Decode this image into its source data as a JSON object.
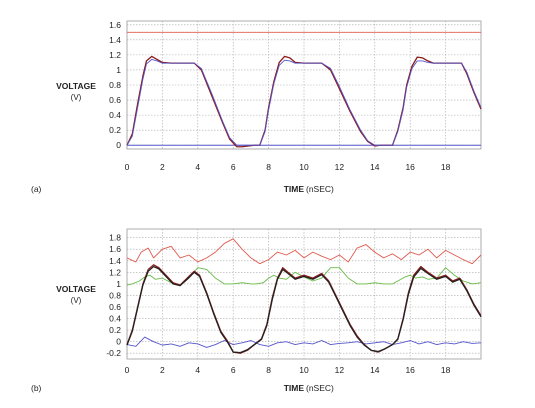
{
  "chart_data": [
    {
      "panel_label": "(a)",
      "type": "line",
      "ylabel": "VOLTAGE",
      "yunit": "(V)",
      "xlabel": "TIME",
      "xunit": "(nSEC)",
      "xlim": [
        0,
        20
      ],
      "ylim": [
        -0.05,
        1.65
      ],
      "xticks": [
        "0",
        "2",
        "4",
        "6",
        "8",
        "10",
        "12",
        "14",
        "16",
        "18"
      ],
      "yticks": [
        "0",
        "0.2",
        "0.4",
        "0.6",
        "0.8",
        "1",
        "1.2",
        "1.4",
        "1.6"
      ],
      "grid": true,
      "colors": {
        "red": "#e05a4e",
        "blue": "#5555cc",
        "black": "#222222",
        "dkred": "#8a1a1a"
      },
      "series": [
        {
          "color": "#e05a4e",
          "x": [
            0,
            20
          ],
          "y": [
            1.5,
            1.5
          ]
        },
        {
          "color": "#5555cc",
          "x": [
            0,
            20
          ],
          "y": [
            0,
            0
          ]
        },
        {
          "color": "#8a1a1a",
          "x": [
            0,
            0.3,
            0.6,
            0.9,
            1.1,
            1.4,
            1.7,
            2.0,
            2.5,
            3.0,
            3.8,
            4.2,
            4.8,
            5.4,
            5.8,
            6.2,
            6.5,
            7.2,
            7.5,
            7.8,
            8.0,
            8.3,
            8.6,
            8.9,
            9.2,
            9.5,
            10.0,
            11.0,
            11.5,
            12.0,
            12.6,
            13.2,
            13.6,
            14.0,
            14.3,
            15.0,
            15.3,
            15.6,
            15.8,
            16.1,
            16.4,
            16.7,
            17.0,
            17.3,
            17.5,
            18.0,
            18.9,
            19.2,
            19.6,
            20.0
          ],
          "y": [
            0,
            0.15,
            0.55,
            0.92,
            1.12,
            1.18,
            1.14,
            1.1,
            1.09,
            1.09,
            1.09,
            1.0,
            0.65,
            0.3,
            0.08,
            -0.02,
            -0.02,
            0,
            0,
            0.2,
            0.5,
            0.85,
            1.1,
            1.18,
            1.16,
            1.1,
            1.09,
            1.09,
            1.0,
            0.75,
            0.45,
            0.18,
            0.05,
            -0.01,
            0,
            0,
            0.2,
            0.5,
            0.8,
            1.05,
            1.17,
            1.16,
            1.12,
            1.09,
            1.09,
            1.09,
            1.09,
            0.95,
            0.7,
            0.48
          ]
        },
        {
          "color": "#5555cc",
          "x": [
            0,
            0.3,
            0.6,
            0.9,
            1.1,
            1.4,
            1.7,
            2.0,
            2.5,
            3.0,
            3.8,
            4.2,
            4.8,
            5.4,
            5.8,
            6.2,
            6.5,
            7.2,
            7.5,
            7.8,
            8.0,
            8.3,
            8.6,
            8.9,
            9.2,
            9.5,
            10.0,
            11.0,
            11.5,
            12.0,
            12.6,
            13.2,
            13.6,
            14.0,
            14.3,
            15.0,
            15.3,
            15.6,
            15.8,
            16.1,
            16.4,
            16.7,
            17.0,
            17.3,
            17.5,
            18.0,
            18.9,
            19.2,
            19.6,
            20.0
          ],
          "y": [
            0,
            0.12,
            0.5,
            0.88,
            1.08,
            1.14,
            1.12,
            1.09,
            1.09,
            1.09,
            1.09,
            1.02,
            0.68,
            0.32,
            0.1,
            0,
            0,
            0,
            0,
            0.18,
            0.47,
            0.82,
            1.06,
            1.13,
            1.12,
            1.09,
            1.09,
            1.09,
            1.02,
            0.78,
            0.47,
            0.2,
            0.06,
            0,
            0,
            0,
            0.18,
            0.47,
            0.77,
            1.02,
            1.12,
            1.12,
            1.1,
            1.09,
            1.09,
            1.09,
            1.09,
            0.97,
            0.72,
            0.5
          ]
        }
      ]
    },
    {
      "panel_label": "(b)",
      "type": "line",
      "ylabel": "VOLTAGE",
      "yunit": "(V)",
      "xlabel": "TIME",
      "xunit": "(nSEC)",
      "xlim": [
        0,
        20
      ],
      "ylim": [
        -0.3,
        1.95
      ],
      "xticks": [
        "0",
        "2",
        "4",
        "6",
        "8",
        "10",
        "12",
        "14",
        "16",
        "18"
      ],
      "yticks": [
        "-0.2",
        "0",
        "0.2",
        "0.4",
        "0.6",
        "0.8",
        "1",
        "1.2",
        "1.4",
        "1.6",
        "1.8"
      ],
      "grid": true,
      "colors": {
        "red": "#e05a4e",
        "green": "#66bb44",
        "blue": "#5555cc",
        "black": "#222222",
        "dkred": "#8a1a1a"
      },
      "series": [
        {
          "color": "#e05a4e",
          "x": [
            0,
            0.5,
            0.8,
            1.2,
            1.5,
            2.0,
            2.5,
            3.0,
            3.5,
            4.0,
            4.5,
            5.0,
            5.5,
            6.0,
            6.5,
            7.0,
            7.5,
            8.0,
            8.5,
            9.0,
            9.5,
            10.0,
            10.5,
            11.0,
            11.5,
            12.0,
            12.5,
            13.0,
            13.5,
            14.0,
            14.5,
            15.0,
            15.5,
            16.0,
            16.5,
            17.0,
            17.5,
            18.0,
            18.5,
            19.0,
            19.5,
            20.0
          ],
          "y": [
            1.45,
            1.38,
            1.55,
            1.62,
            1.45,
            1.6,
            1.65,
            1.45,
            1.5,
            1.38,
            1.45,
            1.55,
            1.7,
            1.78,
            1.6,
            1.45,
            1.35,
            1.42,
            1.55,
            1.5,
            1.58,
            1.45,
            1.55,
            1.48,
            1.42,
            1.5,
            1.38,
            1.62,
            1.68,
            1.55,
            1.45,
            1.52,
            1.42,
            1.55,
            1.5,
            1.6,
            1.45,
            1.58,
            1.5,
            1.42,
            1.35,
            1.5
          ]
        },
        {
          "color": "#66bb44",
          "x": [
            0,
            0.3,
            0.7,
            1.0,
            1.3,
            1.6,
            2.0,
            2.5,
            3.0,
            3.5,
            4.0,
            4.5,
            5.0,
            5.5,
            6.0,
            6.5,
            7.0,
            7.3,
            7.7,
            8.0,
            8.3,
            8.6,
            9.0,
            9.5,
            10.0,
            10.5,
            11.0,
            11.5,
            12.0,
            12.5,
            13.0,
            13.5,
            14.0,
            14.5,
            15.0,
            15.3,
            15.7,
            16.0,
            16.3,
            16.7,
            17.0,
            17.5,
            18.0,
            18.5,
            19.0,
            19.5,
            20.0
          ],
          "y": [
            0.98,
            1.0,
            1.05,
            1.12,
            1.15,
            1.08,
            1.1,
            1.02,
            0.98,
            1.1,
            1.28,
            1.25,
            1.1,
            1.0,
            1.0,
            1.02,
            1.0,
            1.0,
            1.02,
            1.1,
            1.15,
            1.1,
            1.08,
            1.2,
            1.12,
            1.05,
            1.1,
            1.28,
            1.28,
            1.1,
            1.0,
            1.0,
            1.02,
            1.0,
            1.0,
            1.05,
            1.12,
            1.15,
            1.1,
            1.12,
            1.08,
            1.1,
            1.28,
            1.15,
            1.05,
            1.0,
            1.02
          ]
        },
        {
          "color": "#5555cc",
          "x": [
            0,
            0.5,
            1.0,
            1.5,
            2.0,
            2.5,
            3.0,
            3.5,
            4.0,
            4.5,
            5.0,
            5.5,
            6.0,
            6.5,
            7.0,
            7.5,
            8.0,
            8.5,
            9.0,
            9.5,
            10.0,
            10.5,
            11.0,
            11.5,
            12.0,
            12.5,
            13.0,
            13.5,
            14.0,
            14.5,
            15.0,
            15.5,
            16.0,
            16.5,
            17.0,
            17.5,
            18.0,
            18.5,
            19.0,
            19.5,
            20.0
          ],
          "y": [
            -0.05,
            -0.08,
            0.08,
            0.0,
            -0.06,
            -0.04,
            -0.08,
            -0.02,
            -0.04,
            -0.1,
            -0.05,
            0.02,
            -0.05,
            -0.02,
            0.02,
            -0.05,
            -0.08,
            -0.02,
            0.0,
            -0.05,
            -0.02,
            -0.04,
            0.02,
            -0.05,
            -0.03,
            -0.02,
            0.0,
            -0.04,
            -0.02,
            0.0,
            -0.05,
            -0.02,
            0.02,
            -0.04,
            0.0,
            -0.05,
            -0.02,
            -0.04,
            0.0,
            -0.03,
            -0.02
          ]
        },
        {
          "color": "#8a1a1a",
          "x": [
            0,
            0.3,
            0.6,
            0.9,
            1.2,
            1.5,
            1.8,
            2.2,
            2.6,
            3.0,
            3.4,
            3.8,
            4.1,
            4.5,
            4.9,
            5.3,
            5.7,
            6.0,
            6.4,
            6.8,
            7.2,
            7.6,
            7.9,
            8.2,
            8.5,
            8.8,
            9.1,
            9.5,
            10.0,
            10.5,
            11.0,
            11.4,
            11.8,
            12.2,
            12.6,
            13.0,
            13.4,
            13.8,
            14.2,
            14.6,
            15.0,
            15.3,
            15.6,
            15.9,
            16.2,
            16.6,
            17.0,
            17.5,
            18.0,
            18.4,
            18.8,
            19.2,
            19.6,
            20.0
          ],
          "y": [
            -0.05,
            0.2,
            0.6,
            1.0,
            1.25,
            1.33,
            1.28,
            1.15,
            1.02,
            0.98,
            1.1,
            1.22,
            1.15,
            0.85,
            0.5,
            0.18,
            0.0,
            -0.18,
            -0.2,
            -0.15,
            -0.05,
            0.05,
            0.3,
            0.75,
            1.1,
            1.28,
            1.2,
            1.1,
            1.15,
            1.1,
            1.18,
            1.05,
            0.8,
            0.55,
            0.3,
            0.1,
            -0.05,
            -0.15,
            -0.18,
            -0.12,
            -0.05,
            0.05,
            0.4,
            0.85,
            1.15,
            1.3,
            1.2,
            1.1,
            1.15,
            1.05,
            1.1,
            0.9,
            0.65,
            0.45
          ]
        },
        {
          "color": "#222222",
          "x": [
            0,
            0.3,
            0.6,
            0.9,
            1.2,
            1.5,
            1.8,
            2.2,
            2.6,
            3.0,
            3.4,
            3.8,
            4.1,
            4.5,
            4.9,
            5.3,
            5.7,
            6.0,
            6.4,
            6.8,
            7.2,
            7.6,
            7.9,
            8.2,
            8.5,
            8.8,
            9.1,
            9.5,
            10.0,
            10.5,
            11.0,
            11.4,
            11.8,
            12.2,
            12.6,
            13.0,
            13.4,
            13.8,
            14.2,
            14.6,
            15.0,
            15.3,
            15.6,
            15.9,
            16.2,
            16.6,
            17.0,
            17.5,
            18.0,
            18.4,
            18.8,
            19.2,
            19.6,
            20.0
          ],
          "y": [
            -0.06,
            0.18,
            0.58,
            0.98,
            1.22,
            1.3,
            1.26,
            1.13,
            1.0,
            0.97,
            1.08,
            1.2,
            1.13,
            0.83,
            0.48,
            0.16,
            -0.02,
            -0.18,
            -0.19,
            -0.14,
            -0.05,
            0.04,
            0.28,
            0.72,
            1.08,
            1.25,
            1.18,
            1.08,
            1.13,
            1.08,
            1.16,
            1.03,
            0.78,
            0.53,
            0.28,
            0.08,
            -0.06,
            -0.15,
            -0.17,
            -0.12,
            -0.05,
            0.04,
            0.38,
            0.82,
            1.12,
            1.27,
            1.18,
            1.08,
            1.13,
            1.03,
            1.08,
            0.88,
            0.63,
            0.43
          ]
        }
      ]
    }
  ]
}
